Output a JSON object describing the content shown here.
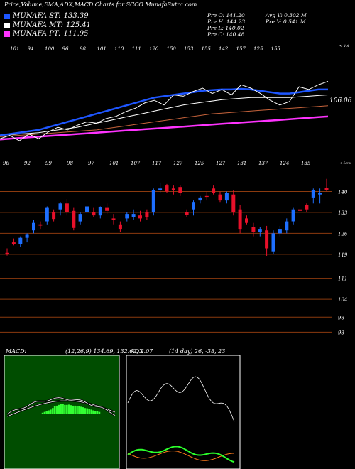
{
  "header": {
    "title": "Price,Volume,EMA,ADX,MACD Charts for SCCO MunafaSutra.com",
    "legend": [
      {
        "label": "MUNAFA ST:",
        "value": "133.39",
        "color": "#1e56ff"
      },
      {
        "label": "MUNAFA MT:",
        "value": "125.41",
        "color": "#ffffff"
      },
      {
        "label": "MUNAFA PT:",
        "value": "111.95",
        "color": "#ff33ff"
      }
    ],
    "stats": {
      "open": "Pre O: 141.20",
      "high": "Pre H: 144.23",
      "low": "Pre L: 140.02",
      "close": "Pre C: 140.48",
      "avg_vol": "Avg V: 0.302 M",
      "pre_vol": "Pre V: 0.541 M"
    }
  },
  "ema_panel": {
    "top_numbers": [
      "101",
      "94",
      "100",
      "96",
      "98",
      "101",
      "110",
      "111",
      "120",
      "150",
      "153",
      "155",
      "142",
      "157",
      "125",
      "155"
    ],
    "top_right_label": "< Vol",
    "bottom_numbers": [
      "96",
      "92",
      "99",
      "98",
      "97",
      "101",
      "107",
      "117",
      "127",
      "125",
      "127",
      "131",
      "137",
      "124",
      "135"
    ],
    "bottom_right_label": "< Low",
    "last_value": "106.06"
  },
  "chart_data": [
    {
      "type": "candlestick",
      "title": "SCCO price",
      "y_ticks": [
        140,
        133,
        126,
        119,
        111,
        104,
        98,
        93
      ],
      "ylim": [
        90,
        147
      ],
      "candles": [
        {
          "o": 119.5,
          "h": 121,
          "l": 118.6,
          "c": 119.2,
          "up": false
        },
        {
          "o": 123,
          "h": 124.3,
          "l": 122,
          "c": 122.3,
          "up": false
        },
        {
          "o": 122.5,
          "h": 125,
          "l": 121.5,
          "c": 124.5,
          "up": true
        },
        {
          "o": 124.5,
          "h": 126,
          "l": 123,
          "c": 125.5,
          "up": true
        },
        {
          "o": 127,
          "h": 130.5,
          "l": 126,
          "c": 129.5,
          "up": true
        },
        {
          "o": 129,
          "h": 130,
          "l": 127.5,
          "c": 128.6,
          "up": false
        },
        {
          "o": 130,
          "h": 135,
          "l": 129,
          "c": 134.5,
          "up": true
        },
        {
          "o": 133,
          "h": 134,
          "l": 130,
          "c": 130.8,
          "up": false
        },
        {
          "o": 134,
          "h": 136.5,
          "l": 132,
          "c": 136,
          "up": true
        },
        {
          "o": 136,
          "h": 137.5,
          "l": 132,
          "c": 133,
          "up": false
        },
        {
          "o": 133.5,
          "h": 134.5,
          "l": 127,
          "c": 127.8,
          "up": false
        },
        {
          "o": 130,
          "h": 133,
          "l": 129,
          "c": 132.5,
          "up": true
        },
        {
          "o": 133,
          "h": 136,
          "l": 131,
          "c": 135,
          "up": true
        },
        {
          "o": 133,
          "h": 134.5,
          "l": 131.5,
          "c": 132,
          "up": false
        },
        {
          "o": 132,
          "h": 135,
          "l": 131,
          "c": 134.8,
          "up": true
        },
        {
          "o": 134.5,
          "h": 136,
          "l": 132.5,
          "c": 133.5,
          "up": false
        },
        {
          "o": 131,
          "h": 132.5,
          "l": 129,
          "c": 130.5,
          "up": false
        },
        {
          "o": 129,
          "h": 130,
          "l": 126.5,
          "c": 127.5,
          "up": false
        },
        {
          "o": 131,
          "h": 133,
          "l": 130,
          "c": 132.5,
          "up": true
        },
        {
          "o": 131.5,
          "h": 134,
          "l": 130.5,
          "c": 132.5,
          "up": true
        },
        {
          "o": 132,
          "h": 133.5,
          "l": 130,
          "c": 131,
          "up": false
        },
        {
          "o": 133,
          "h": 134,
          "l": 130.5,
          "c": 131.5,
          "up": false
        },
        {
          "o": 133,
          "h": 141,
          "l": 132,
          "c": 140.5,
          "up": true
        },
        {
          "o": 140.5,
          "h": 143,
          "l": 139.5,
          "c": 141,
          "up": true
        },
        {
          "o": 142,
          "h": 142.5,
          "l": 139.5,
          "c": 140,
          "up": false
        },
        {
          "o": 141,
          "h": 142,
          "l": 139,
          "c": 140.5,
          "up": false
        },
        {
          "o": 141.5,
          "h": 142,
          "l": 138.5,
          "c": 139.5,
          "up": false
        },
        {
          "o": 133,
          "h": 134,
          "l": 131.5,
          "c": 132.2,
          "up": false
        },
        {
          "o": 134,
          "h": 137,
          "l": 132,
          "c": 136.5,
          "up": true
        },
        {
          "o": 137,
          "h": 138.5,
          "l": 136,
          "c": 138,
          "up": true
        },
        {
          "o": 138.5,
          "h": 140,
          "l": 137,
          "c": 138.2,
          "up": false
        },
        {
          "o": 141,
          "h": 142,
          "l": 139,
          "c": 139.5,
          "up": false
        },
        {
          "o": 139,
          "h": 140,
          "l": 136.5,
          "c": 137,
          "up": false
        },
        {
          "o": 137,
          "h": 140,
          "l": 136,
          "c": 139.5,
          "up": true
        },
        {
          "o": 139,
          "h": 140.5,
          "l": 132,
          "c": 133,
          "up": false
        },
        {
          "o": 134,
          "h": 135.5,
          "l": 126,
          "c": 127.5,
          "up": false
        },
        {
          "o": 131,
          "h": 132,
          "l": 129,
          "c": 129.5,
          "up": false
        },
        {
          "o": 128,
          "h": 129.5,
          "l": 125,
          "c": 126.5,
          "up": false
        },
        {
          "o": 126.5,
          "h": 128,
          "l": 125,
          "c": 127.5,
          "up": true
        },
        {
          "o": 127,
          "h": 128.5,
          "l": 118.5,
          "c": 121,
          "up": false
        },
        {
          "o": 120,
          "h": 127,
          "l": 119,
          "c": 126,
          "up": true
        },
        {
          "o": 126,
          "h": 128.5,
          "l": 125,
          "c": 127.5,
          "up": true
        },
        {
          "o": 127,
          "h": 131,
          "l": 126,
          "c": 130,
          "up": true
        },
        {
          "o": 130,
          "h": 134.5,
          "l": 129,
          "c": 134,
          "up": true
        },
        {
          "o": 134,
          "h": 135.5,
          "l": 133,
          "c": 133.5,
          "up": false
        },
        {
          "o": 134,
          "h": 136,
          "l": 133,
          "c": 135.5,
          "up": false
        },
        {
          "o": 138,
          "h": 141,
          "l": 136,
          "c": 140.5,
          "up": true
        },
        {
          "o": 139,
          "h": 141,
          "l": 136,
          "c": 139.5,
          "up": true
        },
        {
          "o": 141.2,
          "h": 144.23,
          "l": 140.02,
          "c": 140.48,
          "up": false
        }
      ]
    },
    {
      "type": "line",
      "title": "EMA",
      "series": [
        {
          "name": "price",
          "color": "#ffffff",
          "values": [
            0.05,
            0.1,
            0.02,
            0.12,
            0.05,
            0.15,
            0.22,
            0.18,
            0.25,
            0.3,
            0.28,
            0.35,
            0.38,
            0.45,
            0.5,
            0.58,
            0.62,
            0.55,
            0.7,
            0.68,
            0.75,
            0.8,
            0.72,
            0.78,
            0.7,
            0.85,
            0.8,
            0.72,
            0.62,
            0.55,
            0.6,
            0.82,
            0.78,
            0.85,
            0.9
          ]
        },
        {
          "name": "ST",
          "color": "#1e56ff",
          "values": [
            0.1,
            0.12,
            0.14,
            0.16,
            0.18,
            0.22,
            0.26,
            0.3,
            0.34,
            0.38,
            0.42,
            0.46,
            0.5,
            0.54,
            0.58,
            0.62,
            0.66,
            0.68,
            0.7,
            0.72,
            0.74,
            0.76,
            0.77,
            0.78,
            0.78,
            0.79,
            0.78,
            0.76,
            0.74,
            0.72,
            0.72,
            0.74,
            0.76,
            0.78,
            0.78
          ]
        },
        {
          "name": "MT",
          "color": "#ffffff",
          "values": [
            0.1,
            0.11,
            0.12,
            0.13,
            0.14,
            0.16,
            0.18,
            0.2,
            0.22,
            0.25,
            0.28,
            0.31,
            0.34,
            0.37,
            0.4,
            0.43,
            0.46,
            0.49,
            0.52,
            0.55,
            0.57,
            0.59,
            0.61,
            0.63,
            0.64,
            0.65,
            0.66,
            0.66,
            0.66,
            0.66,
            0.66,
            0.67,
            0.68,
            0.69,
            0.7
          ]
        },
        {
          "name": "LT",
          "color": "#c8643c",
          "values": [
            0.08,
            0.09,
            0.1,
            0.11,
            0.12,
            0.13,
            0.14,
            0.15,
            0.16,
            0.17,
            0.18,
            0.2,
            0.22,
            0.24,
            0.26,
            0.28,
            0.3,
            0.32,
            0.34,
            0.36,
            0.38,
            0.4,
            0.42,
            0.43,
            0.44,
            0.45,
            0.46,
            0.47,
            0.48,
            0.49,
            0.5,
            0.51,
            0.52,
            0.53,
            0.54
          ]
        },
        {
          "name": "PT",
          "color": "#ff33ff",
          "values": [
            0.04,
            0.05,
            0.06,
            0.07,
            0.08,
            0.09,
            0.1,
            0.11,
            0.12,
            0.13,
            0.14,
            0.15,
            0.16,
            0.17,
            0.18,
            0.19,
            0.2,
            0.21,
            0.22,
            0.23,
            0.24,
            0.25,
            0.26,
            0.27,
            0.28,
            0.29,
            0.3,
            0.31,
            0.32,
            0.33,
            0.34,
            0.35,
            0.36,
            0.37,
            0.38
          ]
        }
      ]
    },
    {
      "type": "line",
      "title": "MACD",
      "macd_label": "MACD:",
      "values_text": "(12,26,9) 134.69, 132.62, 2.07",
      "hist": [
        0.1,
        0.15,
        0.2,
        0.25,
        0.3,
        0.4,
        0.5,
        0.55,
        0.6,
        0.65,
        0.65,
        0.6,
        0.6,
        0.62,
        0.58,
        0.55,
        0.55,
        0.5,
        0.5,
        0.48,
        0.45,
        0.4,
        0.38,
        0.35,
        0.3,
        0.25,
        0.2,
        0.18,
        0.15
      ]
    },
    {
      "type": "line",
      "title": "ADX",
      "adx_label": "ADX",
      "values_text": "(14 day) 26, -38, 23"
    }
  ]
}
